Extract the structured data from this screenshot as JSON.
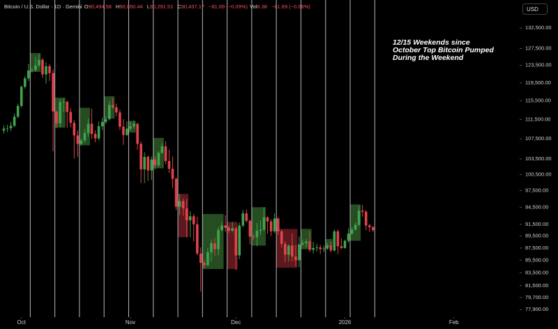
{
  "chart_data": {
    "type": "candlestick",
    "title": "Bitcoin / U.S. Dollar · 1D · Gemini",
    "legend": [
      {
        "label": "O",
        "value": "90,494.58"
      },
      {
        "label": "H",
        "value": "90,650.44"
      },
      {
        "label": "L",
        "value": "90,291.51"
      },
      {
        "label": "C",
        "value": "90,437.17"
      }
    ],
    "change": "−81.69 (−0.09%)",
    "volume": {
      "label": "Vol",
      "value": "8.38"
    },
    "volume_change": "−81.69 (−0.09%)",
    "currency": "USD",
    "annotation": [
      "12/15 Weekends since",
      "October Top Bitcoin Pumped",
      "During the Weekend"
    ],
    "log_scale": true,
    "up_color": "#3fa34d",
    "down_color": "#e0424b",
    "weekend_line_color": "#d8d8d8",
    "xlim": [
      -6.1,
      141.7
    ],
    "xticks": [
      {
        "value": 0,
        "label": "Oct"
      },
      {
        "value": 31,
        "label": "Nov"
      },
      {
        "value": 61,
        "label": "Dec"
      },
      {
        "value": 92,
        "label": "2026"
      },
      {
        "value": 123,
        "label": "Feb"
      }
    ],
    "ylim": [
      76800,
      139700
    ],
    "yticks": [
      {
        "value": 132500,
        "label": "132,500.00"
      },
      {
        "value": 127500,
        "label": "127,500.00"
      },
      {
        "value": 123500,
        "label": "123,500.00"
      },
      {
        "value": 119500,
        "label": "119,500.00"
      },
      {
        "value": 115500,
        "label": "115,500.00"
      },
      {
        "value": 111500,
        "label": "111,500.00"
      },
      {
        "value": 107500,
        "label": "107,500.00"
      },
      {
        "value": 103500,
        "label": "103,500.00"
      },
      {
        "value": 100500,
        "label": "100,500.00"
      },
      {
        "value": 97500,
        "label": "97,500.00"
      },
      {
        "value": 94500,
        "label": "94,500.00"
      },
      {
        "value": 91500,
        "label": "91,500.00"
      },
      {
        "value": 89500,
        "label": "89,500.00"
      },
      {
        "value": 87500,
        "label": "87,500.00"
      },
      {
        "value": 85500,
        "label": "85,500.00"
      },
      {
        "value": 83500,
        "label": "83,500.00"
      },
      {
        "value": 81500,
        "label": "81,500.00"
      },
      {
        "value": 79700,
        "label": "79,700.00"
      },
      {
        "value": 77900,
        "label": "77,900.00"
      }
    ],
    "x": [
      -5,
      -4,
      -3,
      -2,
      -1,
      0,
      1,
      2,
      3,
      4,
      5,
      6,
      7,
      8,
      9,
      10,
      11,
      12,
      13,
      14,
      15,
      16,
      17,
      18,
      19,
      20,
      21,
      22,
      23,
      24,
      25,
      26,
      27,
      28,
      29,
      30,
      31,
      32,
      33,
      34,
      35,
      36,
      37,
      38,
      39,
      40,
      41,
      42,
      43,
      44,
      45,
      46,
      47,
      48,
      49,
      50,
      51,
      52,
      53,
      54,
      55,
      56,
      57,
      58,
      59,
      60,
      61,
      62,
      63,
      64,
      65,
      66,
      67,
      68,
      69,
      70,
      71,
      72,
      73,
      74,
      75,
      76,
      77,
      78,
      79,
      80,
      81,
      82,
      83,
      84,
      85,
      86,
      87,
      88,
      89,
      90,
      91,
      92,
      93,
      94,
      95,
      96,
      97,
      98,
      99,
      100
    ],
    "open": [
      109200,
      109600,
      109700,
      110200,
      112100,
      114400,
      118600,
      120500,
      122300,
      122400,
      123500,
      124800,
      121400,
      123300,
      121700,
      113200,
      110700,
      115200,
      115300,
      113100,
      110800,
      108200,
      106500,
      107200,
      108700,
      110600,
      108500,
      107600,
      110100,
      111000,
      111600,
      114600,
      114100,
      113000,
      110000,
      108300,
      109600,
      110100,
      110600,
      106500,
      101500,
      103900,
      101300,
      103400,
      102300,
      104700,
      106000,
      103100,
      101600,
      99700,
      94600,
      95600,
      94300,
      92200,
      92900,
      91500,
      86600,
      85100,
      84700,
      86800,
      88300,
      87300,
      90500,
      91300,
      90900,
      90400,
      90800,
      86300,
      91300,
      93400,
      92100,
      89400,
      89300,
      90400,
      90600,
      92700,
      92000,
      90300,
      92500,
      90300,
      88200,
      86400,
      87900,
      86100,
      85500,
      88100,
      88300,
      88600,
      87200,
      87500,
      87600,
      87300,
      87400,
      87900,
      87100,
      90300,
      87800,
      87500,
      88700,
      89900,
      90600,
      91400,
      93900,
      93700,
      91300,
      91000
    ],
    "high": [
      110300,
      110400,
      111000,
      112800,
      114900,
      118900,
      121000,
      123800,
      122900,
      125500,
      126200,
      125200,
      124200,
      123800,
      122500,
      113400,
      115900,
      116000,
      115500,
      113900,
      111400,
      109200,
      107500,
      109500,
      111700,
      113800,
      109200,
      111100,
      111900,
      112100,
      115400,
      116100,
      114900,
      113600,
      111600,
      111100,
      111100,
      111300,
      110800,
      107000,
      104800,
      104200,
      104000,
      104000,
      105000,
      106600,
      107000,
      105300,
      104000,
      99900,
      96900,
      96100,
      96000,
      93800,
      93300,
      92800,
      87600,
      85500,
      87500,
      88900,
      89200,
      91000,
      91900,
      93100,
      91200,
      91900,
      91000,
      91800,
      94000,
      94100,
      92300,
      89800,
      91700,
      92200,
      94500,
      93000,
      92400,
      93400,
      92800,
      90600,
      88600,
      88100,
      89900,
      88000,
      89400,
      88900,
      89000,
      90300,
      88500,
      88200,
      88000,
      87900,
      88300,
      88600,
      90600,
      90600,
      89100,
      88900,
      90800,
      91000,
      91800,
      94800,
      94900,
      94000,
      91600,
      91200
    ],
    "low": [
      108600,
      108900,
      109100,
      109900,
      111800,
      114000,
      118200,
      119900,
      121800,
      122000,
      123100,
      120600,
      119300,
      119900,
      105000,
      109700,
      109900,
      113100,
      109800,
      109900,
      103600,
      103900,
      106200,
      106700,
      107900,
      107500,
      106800,
      107200,
      109300,
      110600,
      111300,
      113800,
      112200,
      109300,
      106300,
      108100,
      109200,
      109600,
      105300,
      98900,
      98900,
      99300,
      99500,
      101500,
      101900,
      104500,
      102500,
      100800,
      98000,
      94000,
      93100,
      93000,
      89300,
      89300,
      88600,
      86300,
      80600,
      84200,
      84600,
      85300,
      86200,
      86300,
      90300,
      90200,
      90000,
      90100,
      83900,
      85700,
      91000,
      91800,
      88100,
      88900,
      87800,
      89700,
      90300,
      89900,
      89500,
      90000,
      89700,
      87600,
      85200,
      85300,
      85300,
      84500,
      84400,
      87900,
      87600,
      86800,
      86600,
      86900,
      86500,
      86800,
      87200,
      86800,
      86900,
      86500,
      87300,
      87400,
      88400,
      89700,
      90400,
      91200,
      92800,
      90500,
      90200,
      90200
    ],
    "close": [
      109600,
      109700,
      110200,
      112100,
      114400,
      118600,
      120500,
      122300,
      122400,
      123500,
      124800,
      121400,
      123300,
      121700,
      113200,
      110700,
      115200,
      115300,
      113100,
      110800,
      108200,
      106500,
      107200,
      108700,
      110600,
      108500,
      107600,
      110100,
      111000,
      111600,
      114600,
      114100,
      113000,
      110000,
      108300,
      109600,
      110100,
      110600,
      106500,
      101500,
      103900,
      101300,
      103400,
      102300,
      104700,
      106000,
      103100,
      101600,
      99700,
      94600,
      95600,
      94300,
      92200,
      92900,
      91500,
      86600,
      85100,
      84700,
      86800,
      88300,
      87300,
      90500,
      91300,
      90900,
      90400,
      90800,
      86300,
      91300,
      93400,
      92100,
      89400,
      89300,
      90400,
      90600,
      92700,
      92000,
      90300,
      92500,
      90300,
      88200,
      86400,
      87900,
      86100,
      85500,
      88100,
      88300,
      88600,
      87200,
      87500,
      87600,
      87300,
      87400,
      87900,
      87100,
      90300,
      87800,
      87500,
      88700,
      89900,
      90600,
      91400,
      93900,
      93700,
      91300,
      91000,
      90500
    ],
    "weekend_lines": [
      3,
      10,
      17,
      24,
      31,
      38,
      45,
      52,
      59,
      66,
      73,
      80,
      87,
      94,
      101
    ],
    "weekend_boxes": [
      {
        "start": 3,
        "end": 5,
        "low": 122000,
        "high": 126400,
        "color": "#2d5a27"
      },
      {
        "start": 10,
        "end": 12,
        "low": 109800,
        "high": 116200,
        "color": "#2d5a27"
      },
      {
        "start": 17,
        "end": 19,
        "low": 106200,
        "high": 114000,
        "color": "#2d5a27"
      },
      {
        "start": 24,
        "end": 26,
        "low": 111700,
        "high": 116500,
        "color": "#2d5a27"
      },
      {
        "start": 31,
        "end": 32,
        "low": 108800,
        "high": 111200,
        "color": "#2d5a27"
      },
      {
        "start": 38,
        "end": 40,
        "low": 101700,
        "high": 107700,
        "color": "#2d5a27"
      },
      {
        "start": 45,
        "end": 47,
        "low": 89300,
        "high": 96900,
        "color": "#6b1c22"
      },
      {
        "start": 52,
        "end": 57,
        "low": 84100,
        "high": 93300,
        "color": "#2d5a27"
      },
      {
        "start": 59,
        "end": 61,
        "low": 84100,
        "high": 91900,
        "color": "#6b1c22"
      },
      {
        "start": 66,
        "end": 69,
        "low": 87900,
        "high": 94500,
        "color": "#2d5a27"
      },
      {
        "start": 73,
        "end": 78,
        "low": 84300,
        "high": 90700,
        "color": "#6b1c22"
      },
      {
        "start": 80,
        "end": 82,
        "low": 87300,
        "high": 90700,
        "color": "#2d5a27"
      },
      {
        "start": 87,
        "end": 88,
        "low": 87700,
        "high": 89000,
        "color": "#2d5a27"
      },
      {
        "start": 94,
        "end": 96,
        "low": 88700,
        "high": 95000,
        "color": "#2d5a27"
      }
    ]
  }
}
